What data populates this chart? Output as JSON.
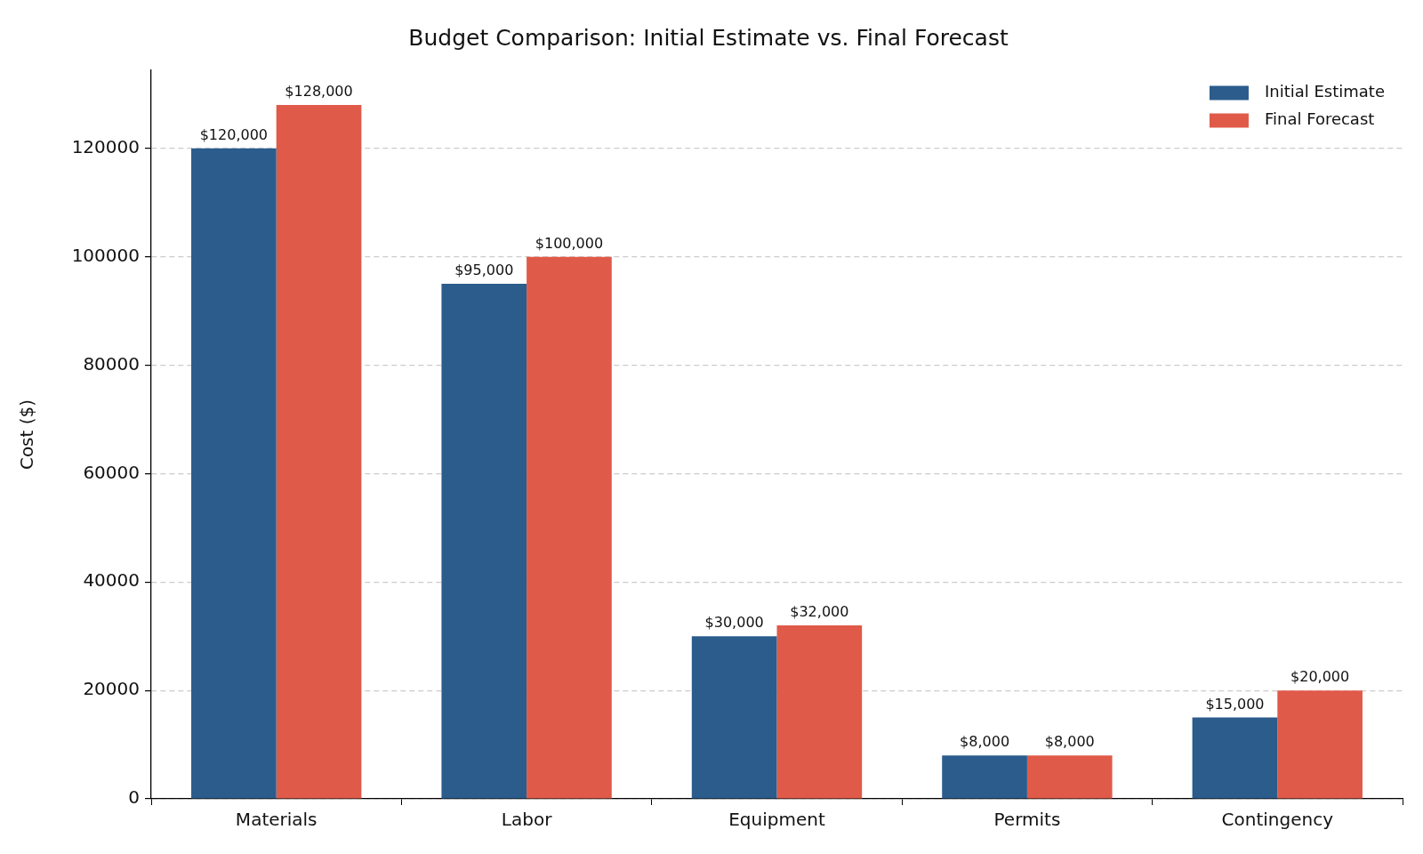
{
  "chart_data": {
    "type": "bar",
    "title": "Budget Comparison: Initial Estimate vs. Final Forecast",
    "ylabel": "Cost ($)",
    "categories": [
      "Materials",
      "Labor",
      "Equipment",
      "Permits",
      "Contingency"
    ],
    "series": [
      {
        "name": "Initial Estimate",
        "color": "#2b5c8c",
        "values": [
          120000,
          95000,
          30000,
          8000,
          15000
        ],
        "value_labels": [
          "$120,000",
          "$95,000",
          "$30,000",
          "$8,000",
          "$15,000"
        ]
      },
      {
        "name": "Final Forecast",
        "color": "#e05a49",
        "values": [
          128000,
          100000,
          32000,
          8000,
          20000
        ],
        "value_labels": [
          "$128,000",
          "$100,000",
          "$32,000",
          "$8,000",
          "$20,000"
        ]
      }
    ],
    "ylim": [
      0,
      134400
    ],
    "yticks": [
      0,
      20000,
      40000,
      60000,
      80000,
      100000,
      120000
    ],
    "grid": "y",
    "legend": "top right"
  }
}
